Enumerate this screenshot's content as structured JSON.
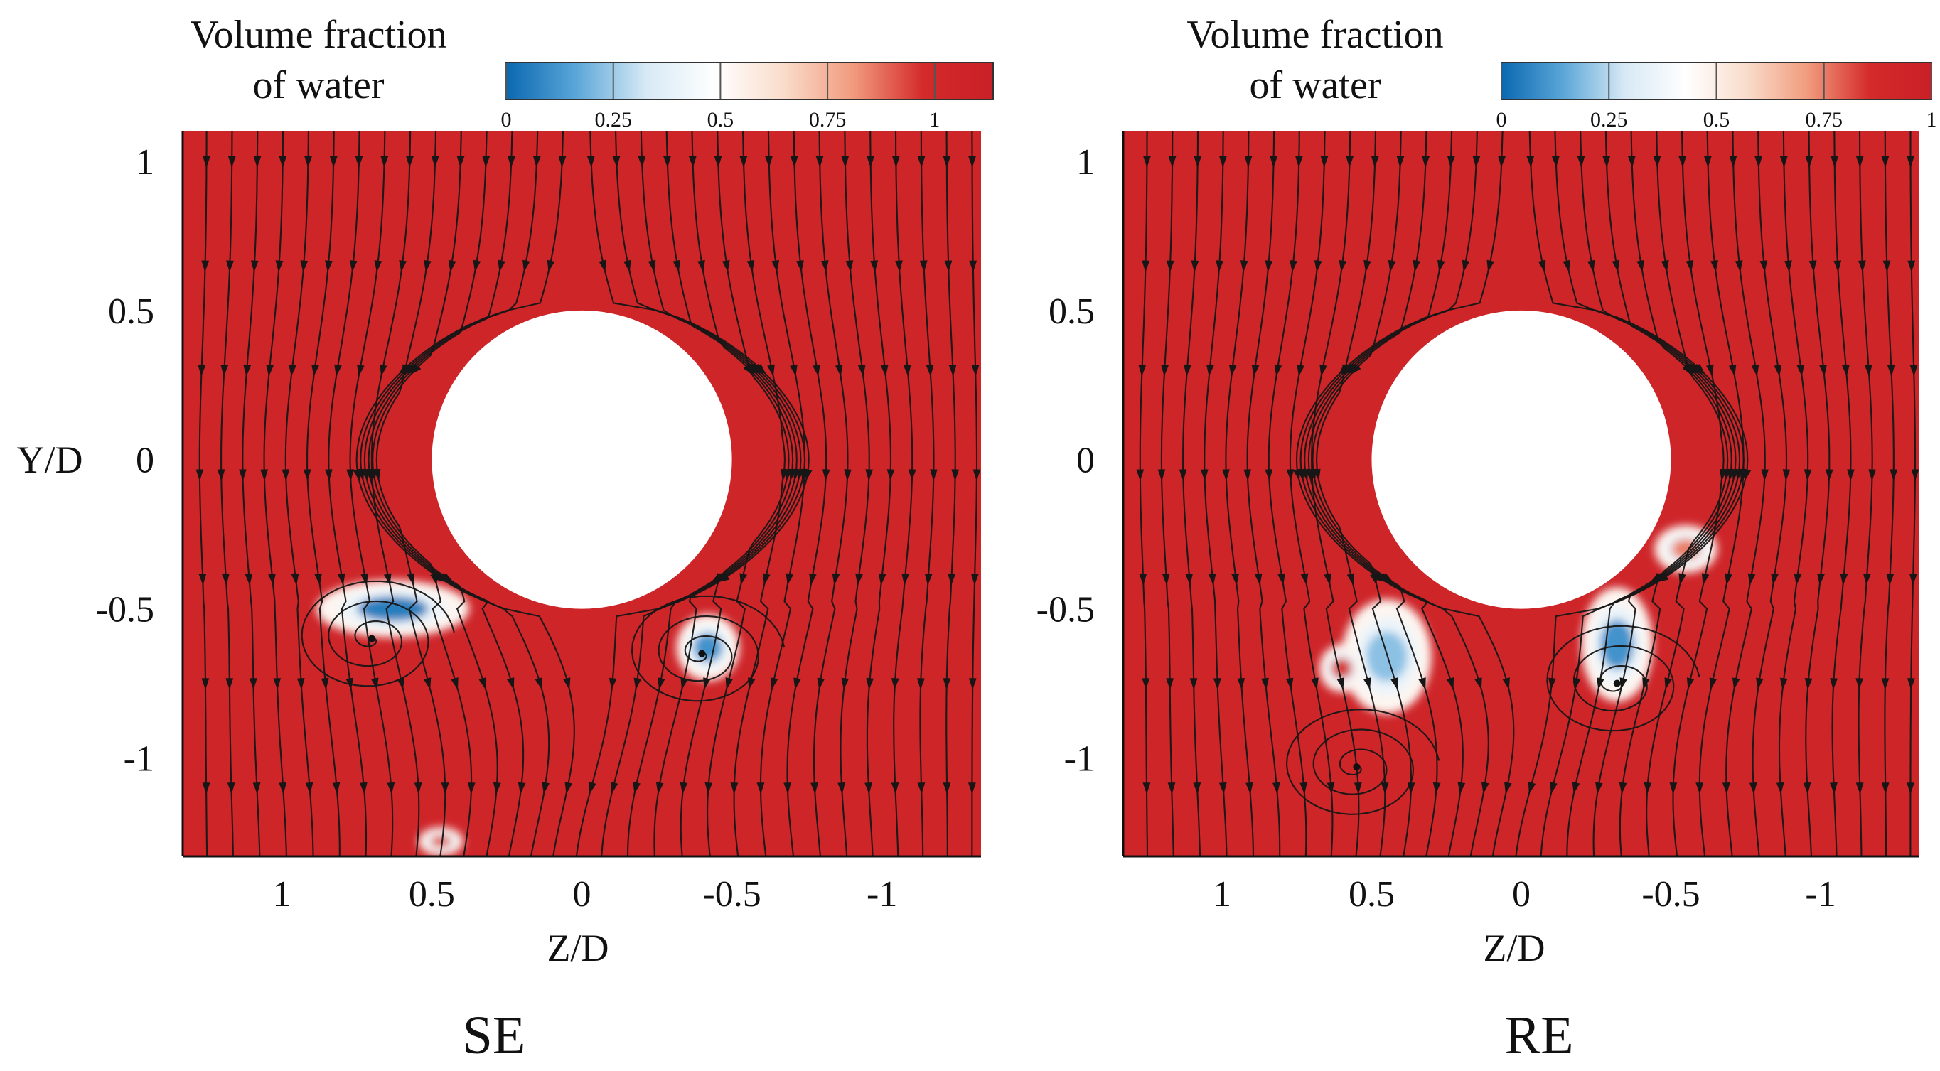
{
  "chart_data": [
    {
      "type": "heatmap",
      "panel_label": "SE",
      "colorbar_title": [
        "Volume fraction",
        "of water"
      ],
      "colorbar_ticks": [
        "0",
        "0.25",
        "0.5",
        "0.75",
        "1"
      ],
      "colormap": [
        "#0a68b0",
        "#5aa6d8",
        "#d7e9f5",
        "#ffffff",
        "#f9dccb",
        "#f19a7c",
        "#d42a2a",
        "#c92028"
      ],
      "background_value": 1,
      "xlabel": "Z/D",
      "ylabel": "Y/D",
      "x_ticks": [
        "1",
        "0.5",
        "0",
        "-0.5",
        "-1"
      ],
      "y_ticks": [
        "1",
        "0.5",
        "0",
        "-0.5",
        "-1"
      ],
      "x_tick_values": [
        1,
        0.5,
        0,
        -0.5,
        -1
      ],
      "y_tick_values": [
        1,
        0.5,
        0,
        -0.5,
        -1
      ],
      "xlim": [
        1.33,
        -1.33
      ],
      "ylim": [
        -1.33,
        1.1
      ],
      "x_reversed": true,
      "cylinder": {
        "center": [
          0,
          0
        ],
        "radius": 0.5
      },
      "air_pockets": [
        {
          "z": 0.63,
          "y": -0.5,
          "min_fraction": 0.05,
          "rz": 0.17,
          "ry": 0.06
        },
        {
          "z": -0.42,
          "y": -0.63,
          "min_fraction": 0.1,
          "rz": 0.07,
          "ry": 0.07
        },
        {
          "z": 0.47,
          "y": -1.28,
          "min_fraction": 0.8,
          "rz": 0.05,
          "ry": 0.03
        }
      ],
      "vortices": [
        {
          "z": 0.7,
          "y": -0.6
        },
        {
          "z": -0.4,
          "y": -0.65
        }
      ],
      "streamlines": "black lines with arrows, flow downward around the cylinder"
    },
    {
      "type": "heatmap",
      "panel_label": "RE",
      "colorbar_title": [
        "Volume fraction",
        "of water"
      ],
      "colorbar_ticks": [
        "0",
        "0.25",
        "0.5",
        "0.75",
        "1"
      ],
      "colormap": [
        "#0a68b0",
        "#5aa6d8",
        "#d7e9f5",
        "#ffffff",
        "#f9dccb",
        "#f19a7c",
        "#d42a2a",
        "#c92028"
      ],
      "background_value": 1,
      "xlabel": "Z/D",
      "ylabel": "",
      "x_ticks": [
        "1",
        "0.5",
        "0",
        "-0.5",
        "-1"
      ],
      "y_ticks": [
        "1",
        "0.5",
        "0",
        "-0.5",
        "-1"
      ],
      "x_tick_values": [
        1,
        0.5,
        0,
        -0.5,
        -1
      ],
      "y_tick_values": [
        1,
        0.5,
        0,
        -0.5,
        -1
      ],
      "xlim": [
        1.33,
        -1.33
      ],
      "ylim": [
        -1.33,
        1.1
      ],
      "x_reversed": true,
      "cylinder": {
        "center": [
          0,
          0
        ],
        "radius": 0.5
      },
      "air_pockets": [
        {
          "z": 0.45,
          "y": -0.66,
          "min_fraction": 0.2,
          "rz": 0.1,
          "ry": 0.12
        },
        {
          "z": -0.32,
          "y": -0.62,
          "min_fraction": 0.1,
          "rz": 0.08,
          "ry": 0.12
        },
        {
          "z": -0.55,
          "y": -0.3,
          "min_fraction": 0.75,
          "rz": 0.07,
          "ry": 0.05
        },
        {
          "z": 0.6,
          "y": -0.7,
          "min_fraction": 0.85,
          "rz": 0.05,
          "ry": 0.05
        }
      ],
      "vortices": [
        {
          "z": 0.55,
          "y": -1.03
        },
        {
          "z": -0.32,
          "y": -0.75
        }
      ],
      "streamlines": "black lines with arrows, flow downward around the cylinder"
    }
  ]
}
